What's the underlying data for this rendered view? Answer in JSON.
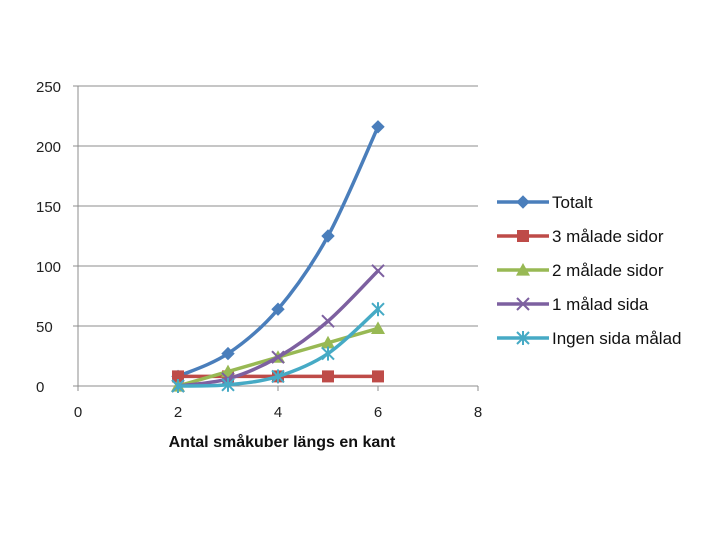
{
  "chart_data": {
    "type": "scatter",
    "title": "",
    "xlabel": "Antal småkuber längs en kant",
    "ylabel": "",
    "xlim": [
      0,
      8
    ],
    "ylim": [
      0,
      250
    ],
    "xticks": [
      0,
      2,
      4,
      6,
      8
    ],
    "yticks": [
      0,
      50,
      100,
      150,
      200,
      250
    ],
    "grid": "horizontal",
    "legend_position": "right",
    "x": [
      2,
      3,
      4,
      5,
      6
    ],
    "series": [
      {
        "name": "Totalt",
        "values": [
          8,
          27,
          64,
          125,
          216
        ],
        "color": "#4a7ebb",
        "marker": "diamond"
      },
      {
        "name": "3 målade sidor",
        "values": [
          8,
          8,
          8,
          8,
          8
        ],
        "color": "#be4b48",
        "marker": "square"
      },
      {
        "name": "2 målade sidor",
        "values": [
          0,
          12,
          24,
          36,
          48
        ],
        "color": "#98b954",
        "marker": "triangle"
      },
      {
        "name": "1 målad sida",
        "values": [
          0,
          6,
          24,
          54,
          96
        ],
        "color": "#7d60a0",
        "marker": "x"
      },
      {
        "name": "Ingen sida målad",
        "values": [
          0,
          1,
          8,
          27,
          64
        ],
        "color": "#46aac5",
        "marker": "star"
      }
    ]
  }
}
